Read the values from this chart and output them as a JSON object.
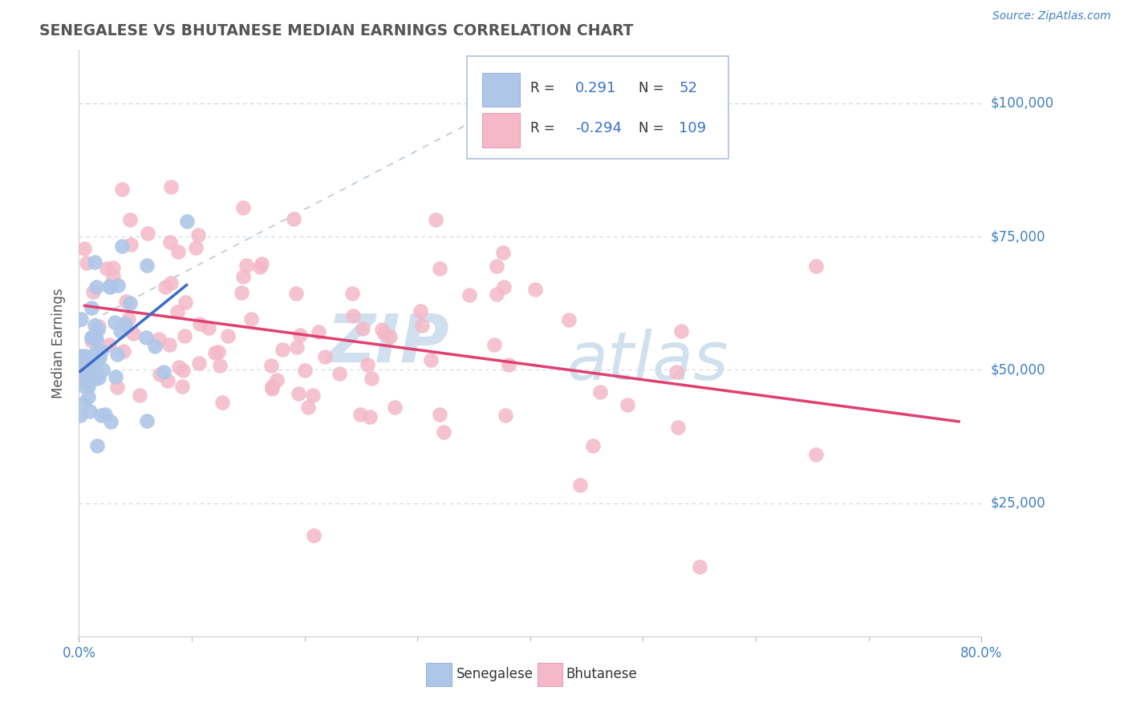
{
  "title": "SENEGALESE VS BHUTANESE MEDIAN EARNINGS CORRELATION CHART",
  "source_text": "Source: ZipAtlas.com",
  "ylabel": "Median Earnings",
  "xlim": [
    0.0,
    0.8
  ],
  "ylim": [
    0,
    110000
  ],
  "ytick_labels": [
    "$25,000",
    "$50,000",
    "$75,000",
    "$100,000"
  ],
  "ytick_values": [
    25000,
    50000,
    75000,
    100000
  ],
  "legend_r_senegalese": "0.291",
  "legend_n_senegalese": "52",
  "legend_r_bhutanese": "-0.294",
  "legend_n_bhutanese": "109",
  "senegalese_color": "#aec6e8",
  "bhutanese_color": "#f4b8c8",
  "trend_senegalese_color": "#3b6cc7",
  "trend_bhutanese_color": "#e04070",
  "diagonal_color": "#b8c8d8",
  "watermark_color": "#d0e0ee",
  "background_color": "#ffffff",
  "title_color": "#555555",
  "source_color": "#4080c0",
  "axis_label_color": "#555555",
  "tick_label_color_y": "#4080c0",
  "tick_label_color_x": "#4080c0",
  "grid_color": "#c8d8e8"
}
